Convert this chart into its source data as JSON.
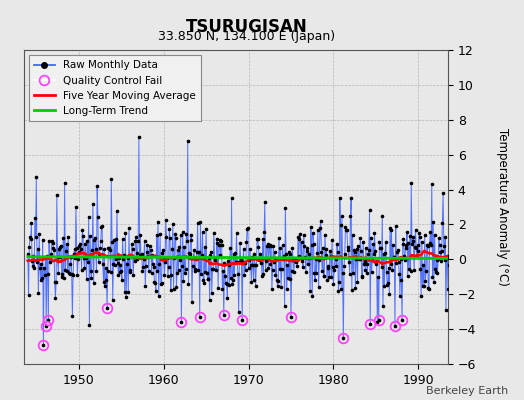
{
  "title": "TSURUGISAN",
  "subtitle": "33.850 N, 134.100 E (Japan)",
  "ylabel": "Temperature Anomaly (°C)",
  "credit": "Berkeley Earth",
  "ylim": [
    -6,
    12
  ],
  "yticks": [
    -6,
    -4,
    -2,
    0,
    2,
    4,
    6,
    8,
    10,
    12
  ],
  "xlim": [
    1943.5,
    1993.5
  ],
  "xticks": [
    1950,
    1960,
    1970,
    1980,
    1990
  ],
  "fig_bg_color": "#e8e8e8",
  "plot_bg_color": "#e8e8e8",
  "line_color": "#4466ff",
  "dot_color": "#000000",
  "qc_color": "#ff44ff",
  "ma_color": "#ff0000",
  "trend_color": "#00cc00",
  "start_year": 1944.0,
  "end_year": 1993.0,
  "seed": 17
}
